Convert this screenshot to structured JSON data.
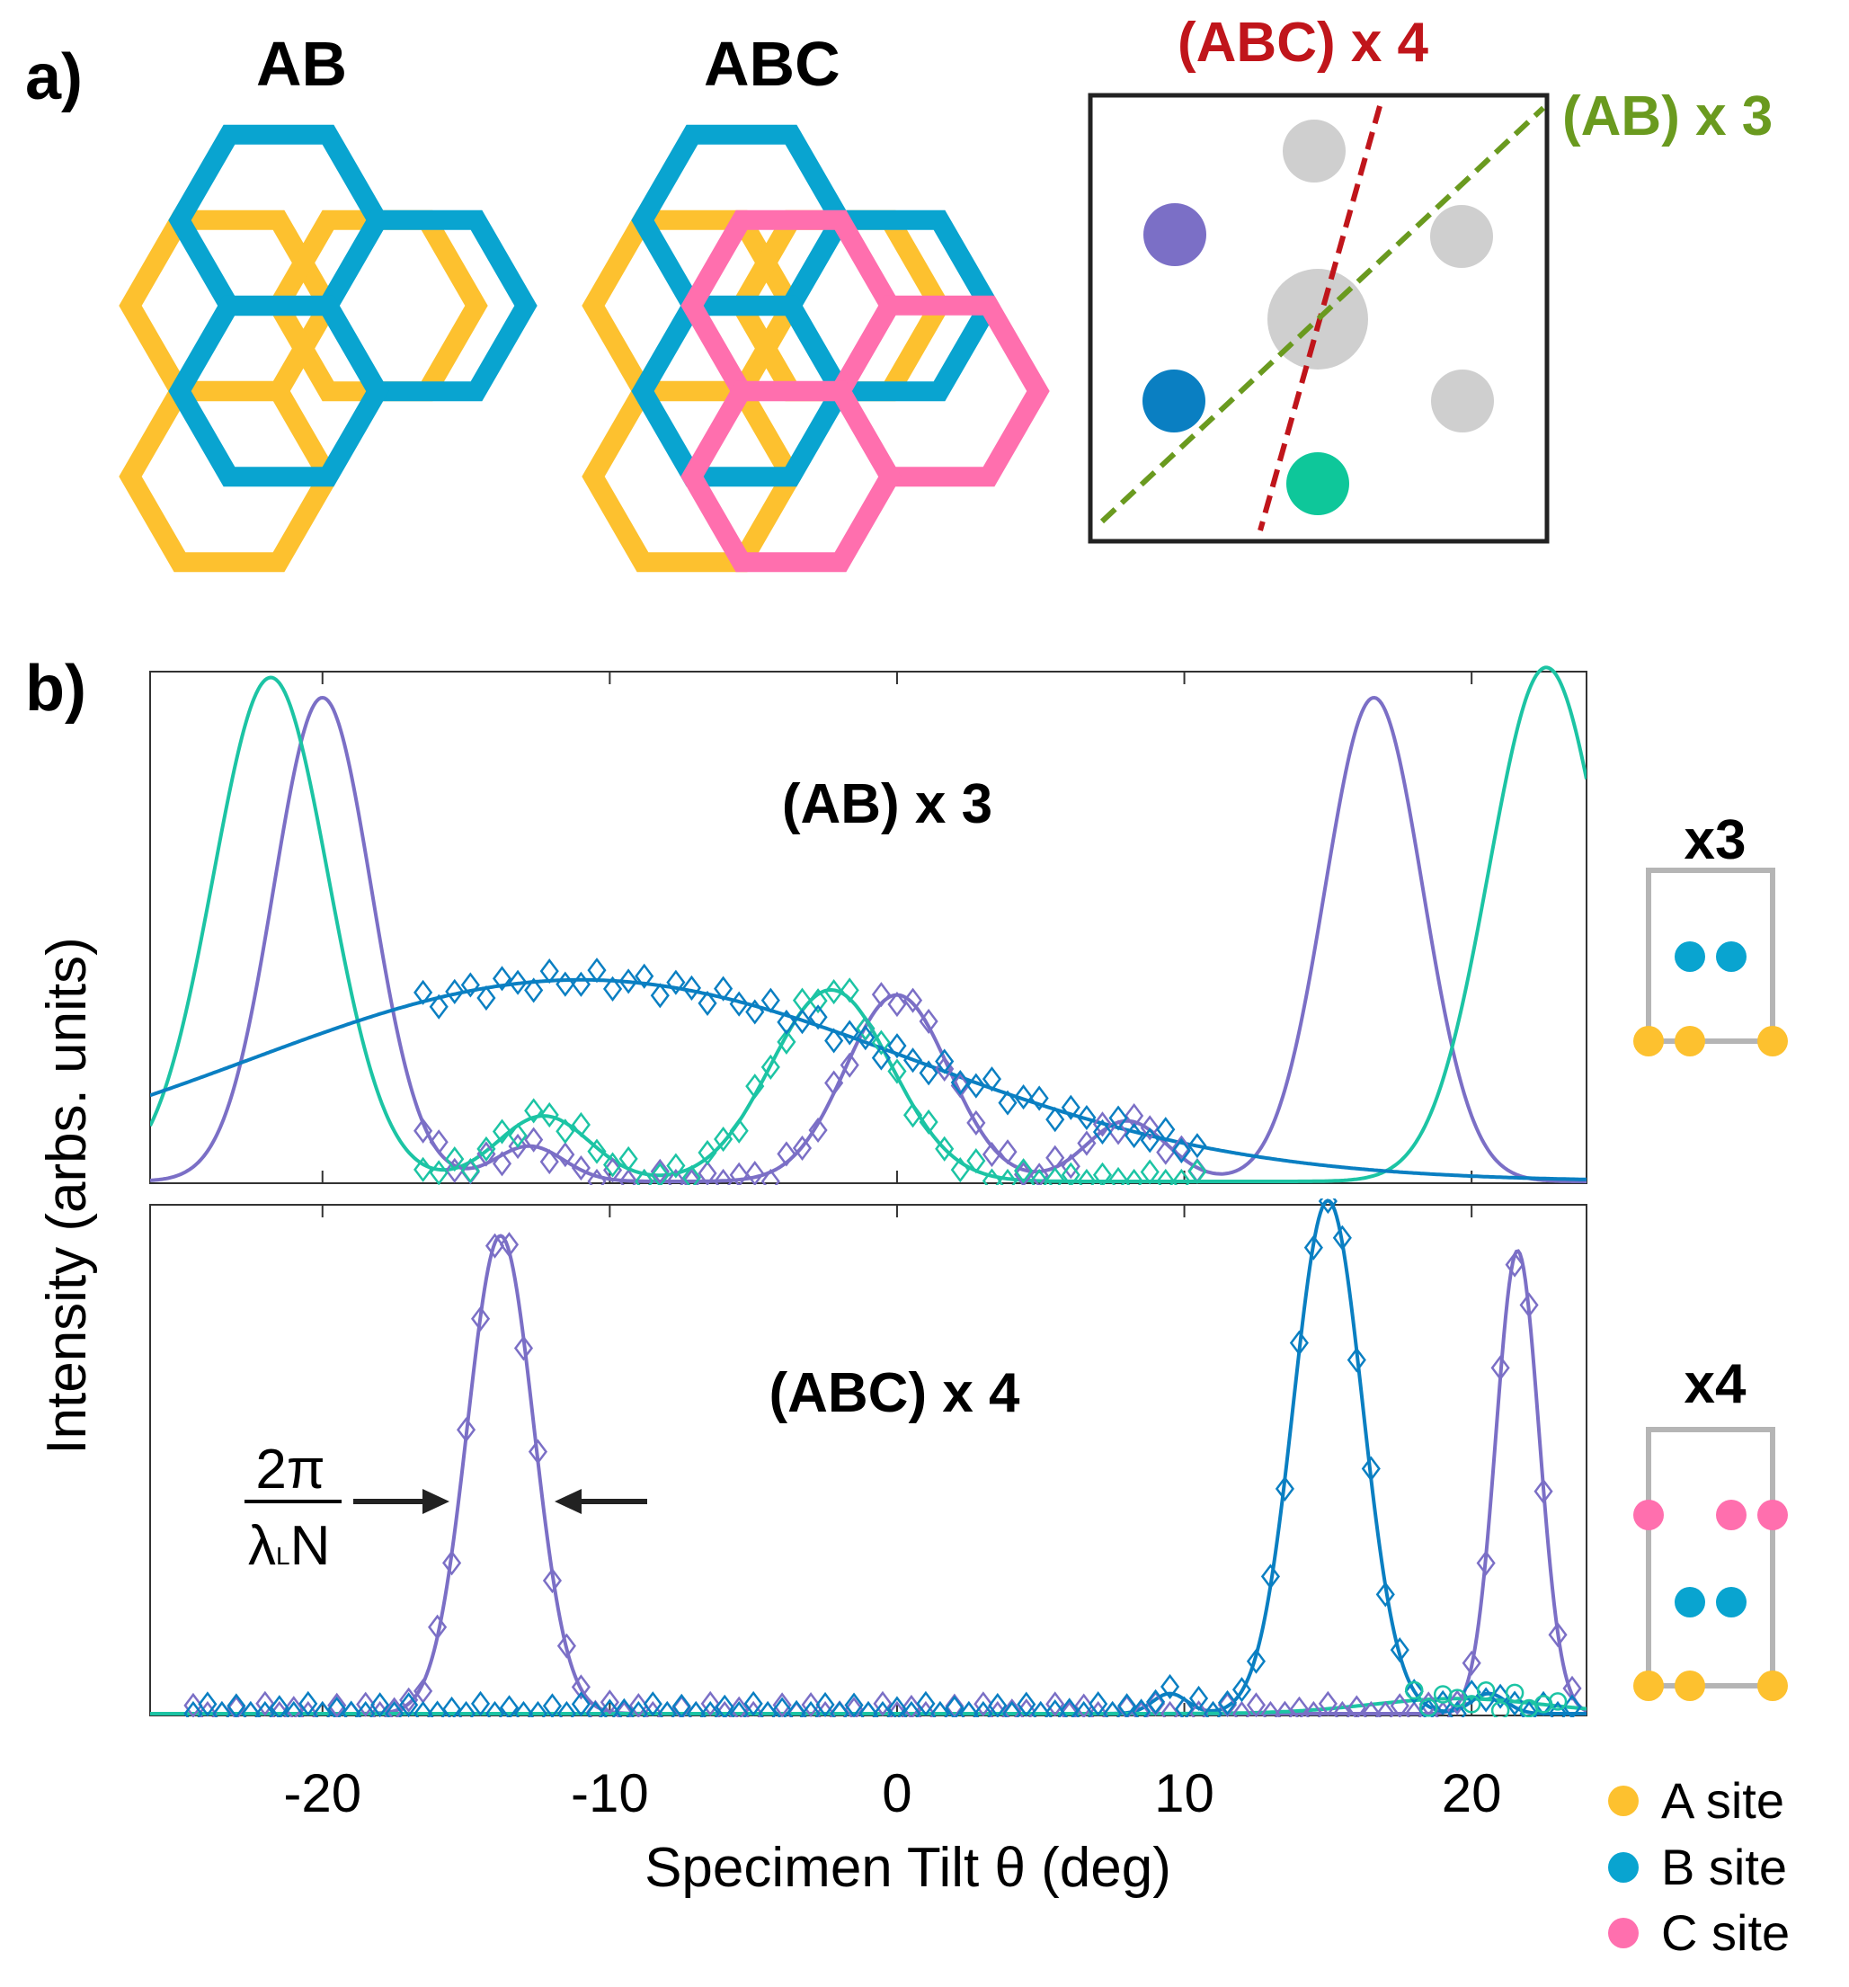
{
  "panel_a": {
    "label": "a)",
    "stackings": [
      {
        "name": "AB",
        "layers": [
          "A",
          "B"
        ]
      },
      {
        "name": "ABC",
        "layers": [
          "A",
          "B",
          "C"
        ]
      }
    ],
    "diffraction_pattern": {
      "lines": [
        {
          "label": "(ABC) x 4",
          "color": "#c0151b"
        },
        {
          "label": "(AB) x 3",
          "color": "#6a9a1f"
        }
      ],
      "spots": [
        {
          "name": "center-spot",
          "color": "#cfcfcf"
        },
        {
          "name": "gray-spot-top",
          "color": "#cfcfcf"
        },
        {
          "name": "gray-spot-right",
          "color": "#cfcfcf"
        },
        {
          "name": "gray-spot-lower-right",
          "color": "#cfcfcf"
        },
        {
          "name": "purple-spot",
          "color": "#7b6fc6"
        },
        {
          "name": "blue-spot",
          "color": "#0a7fc2"
        },
        {
          "name": "teal-spot",
          "color": "#0ec79a"
        }
      ]
    }
  },
  "panel_b": {
    "label": "b)",
    "insets": [
      {
        "label": "x3"
      },
      {
        "label": "x4"
      }
    ],
    "annotation": {
      "numerator": "2π",
      "denominator_main": "λ",
      "denominator_sub": "L",
      "denominator_tail": "N"
    }
  },
  "legend": [
    {
      "label": "A site",
      "color": "#fdc12f"
    },
    {
      "label": "B site",
      "color": "#09a4d0"
    },
    {
      "label": "C site",
      "color": "#ff6fae"
    }
  ],
  "colors": {
    "A": "#fdc12f",
    "B": "#09a4d0",
    "C": "#ff6fae",
    "purple": "#7b6fc6",
    "teal": "#1cc4a4",
    "blue": "#0a7fc2"
  },
  "chart_data": [
    {
      "type": "line",
      "title": "(AB) x 3",
      "xlabel": "Specimen Tilt θ (deg)",
      "ylabel": "Intensity (arbs. units)",
      "xlim": [
        -26,
        24
      ],
      "ylim": [
        0,
        1.0
      ],
      "xticks": [
        -20,
        -10,
        0,
        10,
        20
      ],
      "series": [
        {
          "name": "purple fit",
          "color": "#7b6fc6",
          "kind": "fit",
          "components": [
            [
              -20.0,
              0.96,
              1.7
            ],
            [
              16.6,
              0.96,
              1.7
            ],
            [
              0.0,
              0.37,
              1.8
            ],
            [
              -12.8,
              0.07,
              1.2
            ],
            [
              8.0,
              0.12,
              1.4
            ]
          ]
        },
        {
          "name": "teal fit",
          "color": "#1cc4a4",
          "kind": "fit",
          "components": [
            [
              -21.8,
              1.0,
              2.0
            ],
            [
              22.6,
              1.02,
              2.0
            ],
            [
              -2.3,
              0.38,
              2.1
            ],
            [
              -12.3,
              0.13,
              1.6
            ]
          ]
        },
        {
          "name": "blue fit",
          "color": "#0a7fc2",
          "kind": "fit",
          "components": [
            [
              -11.0,
              0.4,
              11.5
            ]
          ]
        },
        {
          "name": "purple data",
          "color": "#7b6fc6",
          "kind": "data",
          "xrange": [
            -16.5,
            10.5
          ],
          "step": 0.55,
          "fitRef": 0
        },
        {
          "name": "teal data",
          "color": "#1cc4a4",
          "kind": "data",
          "xrange": [
            -16.5,
            10.5
          ],
          "step": 0.55,
          "fitRef": 1
        },
        {
          "name": "blue data",
          "color": "#0a7fc2",
          "kind": "data",
          "xrange": [
            -16.5,
            10.5
          ],
          "step": 0.55,
          "fitRef": 2
        }
      ]
    },
    {
      "type": "line",
      "title": "(ABC) x 4",
      "xlabel": "Specimen Tilt θ (deg)",
      "ylabel": "Intensity (arbs. units)",
      "xlim": [
        -26,
        24
      ],
      "ylim": [
        0,
        1.0
      ],
      "xticks": [
        -20,
        -10,
        0,
        10,
        20
      ],
      "series": [
        {
          "name": "purple fit",
          "color": "#7b6fc6",
          "kind": "fit",
          "components": [
            [
              -13.8,
              0.95,
              1.15
            ],
            [
              21.6,
              0.92,
              0.75
            ]
          ]
        },
        {
          "name": "blue fit",
          "color": "#0a7fc2",
          "kind": "fit",
          "components": [
            [
              15.0,
              1.02,
              1.2
            ],
            [
              9.5,
              0.04,
              0.6
            ],
            [
              20.6,
              0.04,
              0.6
            ]
          ]
        },
        {
          "name": "teal fit",
          "color": "#1cc4a4",
          "kind": "fit",
          "components": [
            [
              19.5,
              0.03,
              3.0
            ]
          ]
        },
        {
          "name": "purple data",
          "color": "#7b6fc6",
          "kind": "data",
          "xrange": [
            -24.5,
            23.5
          ],
          "step": 0.5,
          "fitRef": 0
        },
        {
          "name": "blue data",
          "color": "#0a7fc2",
          "kind": "data",
          "xrange": [
            -24.5,
            23.5
          ],
          "step": 0.5,
          "fitRef": 1
        },
        {
          "name": "teal data",
          "color": "#1cc4a4",
          "kind": "data",
          "xrange": [
            18.0,
            23.0
          ],
          "step": 0.5,
          "fitRef": 2,
          "marker": "circle"
        }
      ]
    }
  ]
}
